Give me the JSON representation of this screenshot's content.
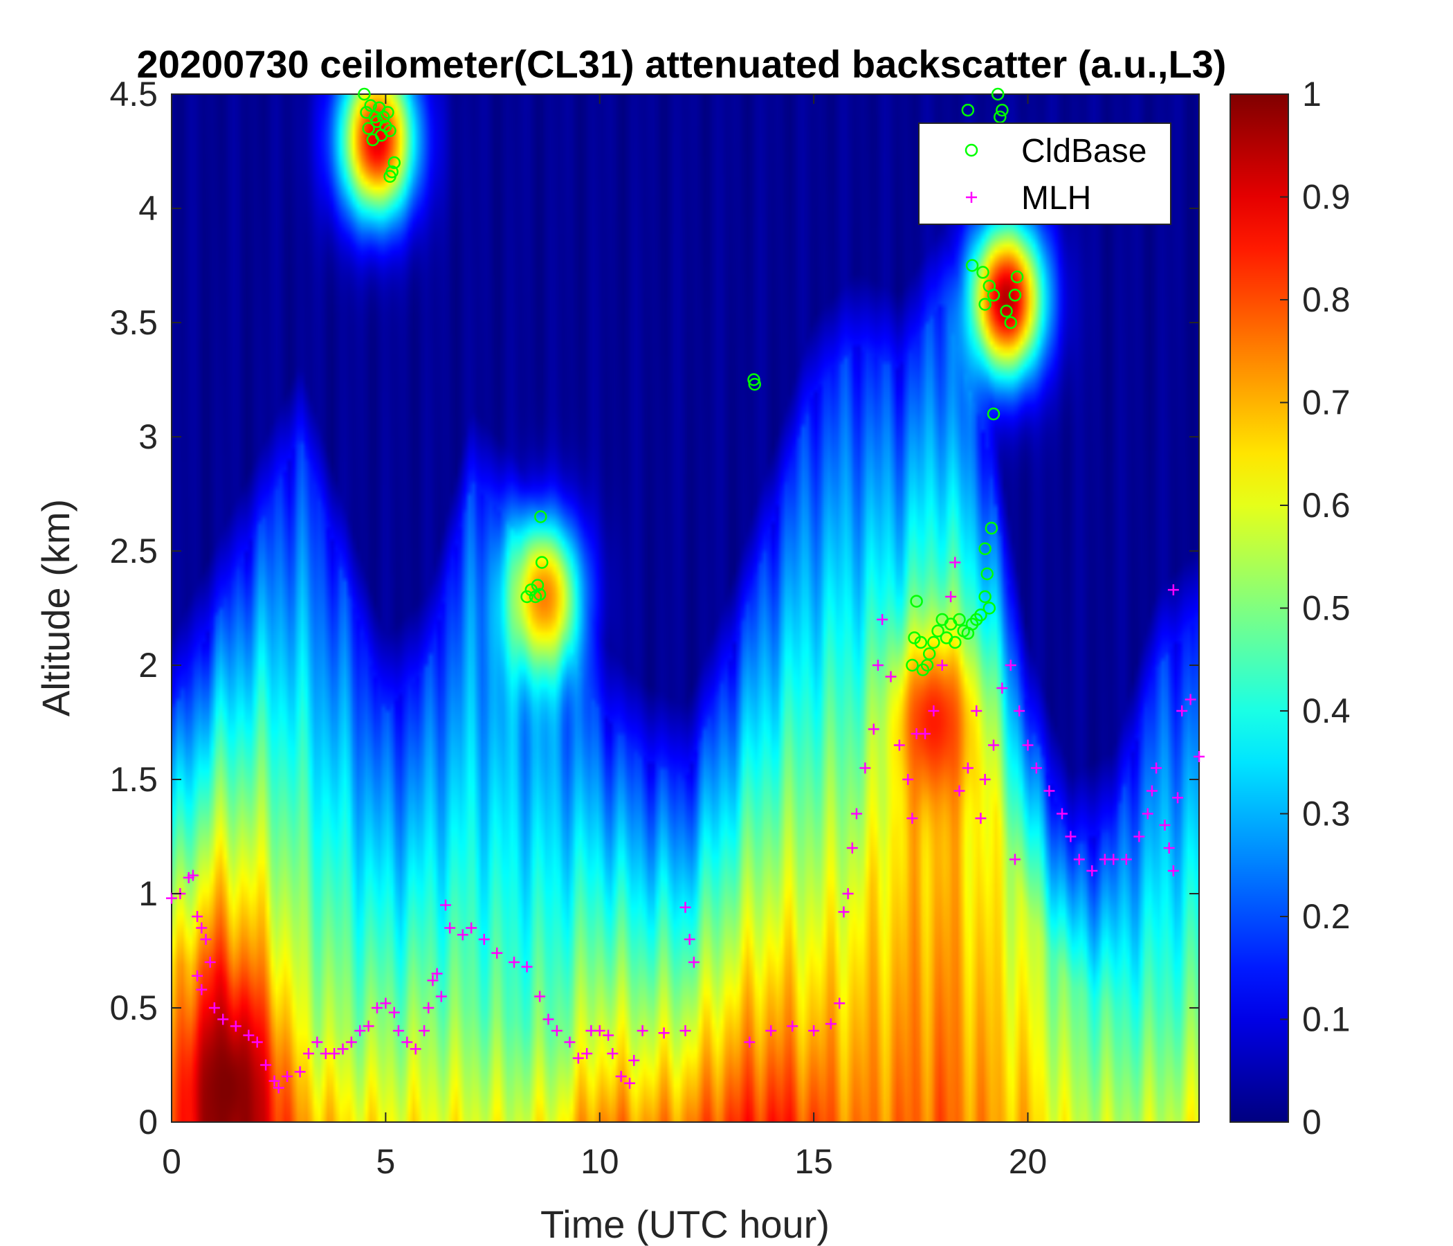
{
  "chart_data": {
    "type": "heatmap",
    "title": "20200730 ceilometer(CL31) attenuated backscatter (a.u.,L3)",
    "xlabel": "Time (UTC hour)",
    "ylabel": "Altitude (km)",
    "xlim": [
      0,
      24
    ],
    "ylim": [
      0,
      4.5
    ],
    "x_ticks": [
      0,
      5,
      10,
      15,
      20
    ],
    "x_tick_labels": [
      "0",
      "5",
      "10",
      "15",
      "20"
    ],
    "y_ticks": [
      0,
      0.5,
      1,
      1.5,
      2,
      2.5,
      3,
      3.5,
      4,
      4.5
    ],
    "y_tick_labels": [
      "0",
      "0.5",
      "1",
      "1.5",
      "2",
      "2.5",
      "3",
      "3.5",
      "4",
      "4.5"
    ],
    "colorbar": {
      "colormap": "jet",
      "clim": [
        0,
        1
      ],
      "ticks": [
        0,
        0.1,
        0.2,
        0.3,
        0.4,
        0.5,
        0.6,
        0.7,
        0.8,
        0.9,
        1
      ],
      "tick_labels": [
        "0",
        "0.1",
        "0.2",
        "0.3",
        "0.4",
        "0.5",
        "0.6",
        "0.7",
        "0.8",
        "0.9",
        "1"
      ]
    },
    "heat_profile": {
      "hours": [
        0,
        1,
        2,
        3,
        4,
        5,
        6,
        7,
        8,
        9,
        10,
        11,
        12,
        13,
        14,
        15,
        16,
        17,
        18,
        19,
        20,
        21,
        22,
        23,
        24
      ],
      "surface_value": [
        0.75,
        0.95,
        0.9,
        0.72,
        0.65,
        0.62,
        0.62,
        0.6,
        0.58,
        0.62,
        0.75,
        0.72,
        0.74,
        0.82,
        0.85,
        0.8,
        0.74,
        0.76,
        0.78,
        0.72,
        0.68,
        0.58,
        0.55,
        0.56,
        0.6
      ],
      "mixed_top_km": [
        0.7,
        0.65,
        0.5,
        0.4,
        0.4,
        0.45,
        0.5,
        0.5,
        0.45,
        0.35,
        0.3,
        0.3,
        0.3,
        0.35,
        0.4,
        0.45,
        0.9,
        1.3,
        1.6,
        1.5,
        0.9,
        0.6,
        0.5,
        0.5,
        0.5
      ],
      "aerosol_top_km": [
        1.8,
        2.2,
        2.6,
        3.0,
        2.4,
        1.8,
        2.0,
        2.8,
        2.6,
        2.2,
        1.8,
        1.6,
        1.5,
        2.0,
        2.6,
        3.2,
        3.4,
        3.3,
        3.6,
        3.0,
        1.8,
        1.2,
        1.3,
        2.0,
        2.2
      ]
    },
    "high_patches": [
      {
        "x": 1.3,
        "y": 0.15,
        "value": 1.0
      },
      {
        "x": 17.8,
        "y": 1.75,
        "value": 0.85
      },
      {
        "x": 19.5,
        "y": 3.6,
        "value": 0.95
      },
      {
        "x": 8.7,
        "y": 2.3,
        "value": 0.75
      },
      {
        "x": 4.8,
        "y": 4.3,
        "value": 0.9
      }
    ],
    "series": [
      {
        "name": "CldBase",
        "marker": "circle",
        "color": "#00ff00",
        "points": [
          [
            4.5,
            4.5
          ],
          [
            4.55,
            4.42
          ],
          [
            4.6,
            4.35
          ],
          [
            4.65,
            4.45
          ],
          [
            4.7,
            4.3
          ],
          [
            4.75,
            4.4
          ],
          [
            4.8,
            4.38
          ],
          [
            4.85,
            4.44
          ],
          [
            4.9,
            4.32
          ],
          [
            4.95,
            4.4
          ],
          [
            5.0,
            4.36
          ],
          [
            5.05,
            4.42
          ],
          [
            5.1,
            4.34
          ],
          [
            5.15,
            4.16
          ],
          [
            5.2,
            4.2
          ],
          [
            5.1,
            4.14
          ],
          [
            8.3,
            2.3
          ],
          [
            8.4,
            2.33
          ],
          [
            8.5,
            2.3
          ],
          [
            8.55,
            2.35
          ],
          [
            8.6,
            2.31
          ],
          [
            8.65,
            2.45
          ],
          [
            8.62,
            2.65
          ],
          [
            13.6,
            3.25
          ],
          [
            13.62,
            3.23
          ],
          [
            17.3,
            2.0
          ],
          [
            17.35,
            2.12
          ],
          [
            17.4,
            2.28
          ],
          [
            17.5,
            2.1
          ],
          [
            17.55,
            1.98
          ],
          [
            17.65,
            2.0
          ],
          [
            17.7,
            2.05
          ],
          [
            17.8,
            2.1
          ],
          [
            17.9,
            2.15
          ],
          [
            18.0,
            2.2
          ],
          [
            18.1,
            2.12
          ],
          [
            18.2,
            2.18
          ],
          [
            18.3,
            2.1
          ],
          [
            18.4,
            2.2
          ],
          [
            18.5,
            2.15
          ],
          [
            18.6,
            2.14
          ],
          [
            18.7,
            2.18
          ],
          [
            18.8,
            2.2
          ],
          [
            18.9,
            2.22
          ],
          [
            19.0,
            2.3
          ],
          [
            19.05,
            2.4
          ],
          [
            19.1,
            2.25
          ],
          [
            19.15,
            2.6
          ],
          [
            19.0,
            2.51
          ],
          [
            19.2,
            3.1
          ],
          [
            18.7,
            3.75
          ],
          [
            18.95,
            3.72
          ],
          [
            19.0,
            3.58
          ],
          [
            19.1,
            3.66
          ],
          [
            19.2,
            3.62
          ],
          [
            19.5,
            3.55
          ],
          [
            19.6,
            3.5
          ],
          [
            19.7,
            3.62
          ],
          [
            19.75,
            3.7
          ],
          [
            19.3,
            4.5
          ],
          [
            19.35,
            4.4
          ],
          [
            19.4,
            4.43
          ],
          [
            18.6,
            4.43
          ]
        ]
      },
      {
        "name": "MLH",
        "marker": "plus",
        "color": "#ff00ff",
        "points": [
          [
            0.0,
            0.98
          ],
          [
            0.2,
            1.0
          ],
          [
            0.4,
            1.07
          ],
          [
            0.5,
            1.08
          ],
          [
            0.6,
            0.9
          ],
          [
            0.7,
            0.85
          ],
          [
            0.8,
            0.8
          ],
          [
            0.9,
            0.7
          ],
          [
            0.6,
            0.64
          ],
          [
            0.7,
            0.58
          ],
          [
            1.0,
            0.5
          ],
          [
            1.2,
            0.45
          ],
          [
            1.5,
            0.42
          ],
          [
            1.8,
            0.38
          ],
          [
            2.0,
            0.35
          ],
          [
            2.2,
            0.25
          ],
          [
            2.4,
            0.18
          ],
          [
            2.5,
            0.15
          ],
          [
            2.7,
            0.2
          ],
          [
            3.0,
            0.22
          ],
          [
            3.2,
            0.3
          ],
          [
            3.4,
            0.35
          ],
          [
            3.6,
            0.3
          ],
          [
            3.8,
            0.3
          ],
          [
            4.0,
            0.32
          ],
          [
            4.2,
            0.35
          ],
          [
            4.4,
            0.4
          ],
          [
            4.6,
            0.42
          ],
          [
            4.8,
            0.5
          ],
          [
            5.0,
            0.52
          ],
          [
            5.2,
            0.48
          ],
          [
            5.3,
            0.4
          ],
          [
            5.5,
            0.35
          ],
          [
            5.7,
            0.32
          ],
          [
            5.9,
            0.4
          ],
          [
            6.0,
            0.5
          ],
          [
            6.1,
            0.62
          ],
          [
            6.2,
            0.65
          ],
          [
            6.3,
            0.55
          ],
          [
            6.4,
            0.95
          ],
          [
            6.5,
            0.85
          ],
          [
            6.8,
            0.82
          ],
          [
            7.0,
            0.85
          ],
          [
            7.3,
            0.8
          ],
          [
            7.6,
            0.74
          ],
          [
            8.0,
            0.7
          ],
          [
            8.3,
            0.68
          ],
          [
            8.6,
            0.55
          ],
          [
            8.8,
            0.45
          ],
          [
            9.0,
            0.4
          ],
          [
            9.3,
            0.35
          ],
          [
            9.5,
            0.28
          ],
          [
            9.7,
            0.3
          ],
          [
            9.8,
            0.4
          ],
          [
            10.0,
            0.4
          ],
          [
            10.2,
            0.38
          ],
          [
            10.3,
            0.3
          ],
          [
            10.5,
            0.2
          ],
          [
            10.7,
            0.17
          ],
          [
            10.8,
            0.27
          ],
          [
            11.0,
            0.4
          ],
          [
            11.5,
            0.39
          ],
          [
            12.0,
            0.4
          ],
          [
            12.0,
            0.94
          ],
          [
            12.1,
            0.8
          ],
          [
            12.2,
            0.7
          ],
          [
            13.5,
            0.35
          ],
          [
            14.0,
            0.4
          ],
          [
            14.5,
            0.42
          ],
          [
            15.0,
            0.4
          ],
          [
            15.4,
            0.43
          ],
          [
            15.6,
            0.52
          ],
          [
            15.8,
            1.0
          ],
          [
            15.7,
            0.92
          ],
          [
            15.9,
            1.2
          ],
          [
            16.0,
            1.35
          ],
          [
            16.2,
            1.55
          ],
          [
            16.4,
            1.72
          ],
          [
            16.5,
            2.0
          ],
          [
            16.6,
            2.2
          ],
          [
            16.8,
            1.95
          ],
          [
            17.0,
            1.65
          ],
          [
            17.2,
            1.5
          ],
          [
            17.4,
            1.7
          ],
          [
            17.3,
            1.33
          ],
          [
            17.6,
            1.7
          ],
          [
            17.8,
            1.8
          ],
          [
            18.0,
            2.0
          ],
          [
            18.2,
            2.3
          ],
          [
            18.3,
            2.45
          ],
          [
            18.4,
            1.45
          ],
          [
            18.6,
            1.55
          ],
          [
            18.8,
            1.8
          ],
          [
            19.0,
            1.5
          ],
          [
            19.2,
            1.65
          ],
          [
            19.4,
            1.9
          ],
          [
            19.6,
            2.0
          ],
          [
            19.8,
            1.8
          ],
          [
            20.0,
            1.65
          ],
          [
            20.2,
            1.55
          ],
          [
            20.5,
            1.45
          ],
          [
            20.8,
            1.35
          ],
          [
            21.0,
            1.25
          ],
          [
            21.2,
            1.15
          ],
          [
            21.5,
            1.1
          ],
          [
            21.8,
            1.15
          ],
          [
            22.0,
            1.15
          ],
          [
            22.3,
            1.15
          ],
          [
            22.6,
            1.25
          ],
          [
            22.8,
            1.35
          ],
          [
            22.9,
            1.45
          ],
          [
            23.0,
            1.55
          ],
          [
            23.2,
            1.3
          ],
          [
            23.3,
            1.2
          ],
          [
            23.4,
            1.1
          ],
          [
            23.5,
            1.42
          ],
          [
            23.6,
            1.8
          ],
          [
            23.8,
            1.85
          ],
          [
            24.0,
            1.6
          ],
          [
            24.1,
            1.5
          ],
          [
            23.4,
            2.33
          ],
          [
            19.7,
            1.15
          ],
          [
            18.9,
            1.33
          ]
        ]
      }
    ],
    "legend": {
      "placement": "top-right",
      "entries": [
        "CldBase",
        "MLH"
      ]
    }
  }
}
